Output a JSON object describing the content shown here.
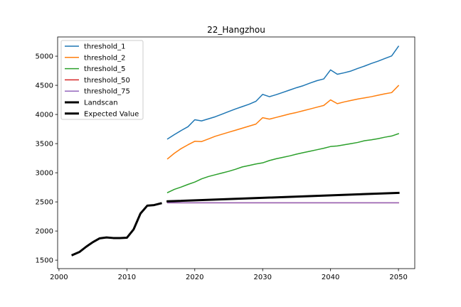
{
  "chart_data": {
    "type": "line",
    "title": "22_Hangzhou",
    "xlabel": "",
    "ylabel": "",
    "xlim": [
      1999.8,
      2052.4
    ],
    "ylim": [
      1355,
      5330
    ],
    "x_ticks": [
      2000,
      2010,
      2020,
      2030,
      2040,
      2050
    ],
    "y_ticks": [
      1500,
      2000,
      2500,
      3000,
      3500,
      4000,
      4500,
      5000
    ],
    "grid": false,
    "legend_position": "top-left",
    "series": [
      {
        "name": "threshold_1",
        "color": "#1f77b4",
        "width": 1.5,
        "x": [
          2016,
          2017,
          2018,
          2019,
          2020,
          2021,
          2022,
          2023,
          2024,
          2025,
          2026,
          2027,
          2028,
          2029,
          2030,
          2031,
          2032,
          2033,
          2034,
          2035,
          2036,
          2037,
          2038,
          2039,
          2040,
          2041,
          2042,
          2043,
          2044,
          2045,
          2046,
          2047,
          2048,
          2049,
          2050
        ],
        "values": [
          3580,
          3655,
          3725,
          3790,
          3910,
          3890,
          3925,
          3960,
          4005,
          4050,
          4095,
          4135,
          4175,
          4225,
          4345,
          4305,
          4340,
          4380,
          4420,
          4460,
          4495,
          4540,
          4580,
          4610,
          4765,
          4690,
          4715,
          4745,
          4790,
          4830,
          4875,
          4915,
          4960,
          5005,
          5170
        ]
      },
      {
        "name": "threshold_2",
        "color": "#ff7f0e",
        "width": 1.5,
        "x": [
          2016,
          2017,
          2018,
          2019,
          2020,
          2021,
          2022,
          2023,
          2024,
          2025,
          2026,
          2027,
          2028,
          2029,
          2030,
          2031,
          2032,
          2033,
          2034,
          2035,
          2036,
          2037,
          2038,
          2039,
          2040,
          2041,
          2042,
          2043,
          2044,
          2045,
          2046,
          2047,
          2048,
          2049,
          2050
        ],
        "values": [
          3240,
          3335,
          3415,
          3480,
          3540,
          3535,
          3580,
          3625,
          3660,
          3695,
          3730,
          3765,
          3800,
          3835,
          3945,
          3920,
          3950,
          3980,
          4010,
          4035,
          4065,
          4095,
          4125,
          4155,
          4250,
          4185,
          4215,
          4240,
          4265,
          4285,
          4305,
          4330,
          4355,
          4375,
          4495
        ]
      },
      {
        "name": "threshold_5",
        "color": "#2ca02c",
        "width": 1.5,
        "x": [
          2016,
          2017,
          2018,
          2019,
          2020,
          2021,
          2022,
          2023,
          2024,
          2025,
          2026,
          2027,
          2028,
          2029,
          2030,
          2031,
          2032,
          2033,
          2034,
          2035,
          2036,
          2037,
          2038,
          2039,
          2040,
          2041,
          2042,
          2043,
          2044,
          2045,
          2046,
          2047,
          2048,
          2049,
          2050
        ],
        "values": [
          2660,
          2715,
          2755,
          2800,
          2840,
          2895,
          2935,
          2965,
          2995,
          3025,
          3060,
          3100,
          3125,
          3150,
          3170,
          3210,
          3240,
          3265,
          3290,
          3320,
          3345,
          3370,
          3395,
          3420,
          3450,
          3460,
          3480,
          3500,
          3520,
          3550,
          3565,
          3585,
          3610,
          3630,
          3670
        ]
      },
      {
        "name": "threshold_50",
        "color": "#d62728",
        "width": 1.5,
        "x": [
          2016,
          2050
        ],
        "values": [
          2485,
          2485
        ]
      },
      {
        "name": "threshold_75",
        "color": "#9467bd",
        "width": 1.5,
        "x": [
          2016,
          2050
        ],
        "values": [
          2485,
          2485
        ]
      },
      {
        "name": "Landscan",
        "color": "#000000",
        "width": 3,
        "x": [
          2002,
          2003,
          2004,
          2005,
          2006,
          2007,
          2008,
          2009,
          2010,
          2011,
          2012,
          2013,
          2014,
          2015
        ],
        "values": [
          1590,
          1640,
          1730,
          1810,
          1875,
          1890,
          1880,
          1880,
          1885,
          2030,
          2300,
          2435,
          2445,
          2475
        ]
      },
      {
        "name": "Expected Value",
        "color": "#000000",
        "width": 3,
        "x": [
          2016,
          2050
        ],
        "values": [
          2510,
          2655
        ]
      }
    ]
  }
}
